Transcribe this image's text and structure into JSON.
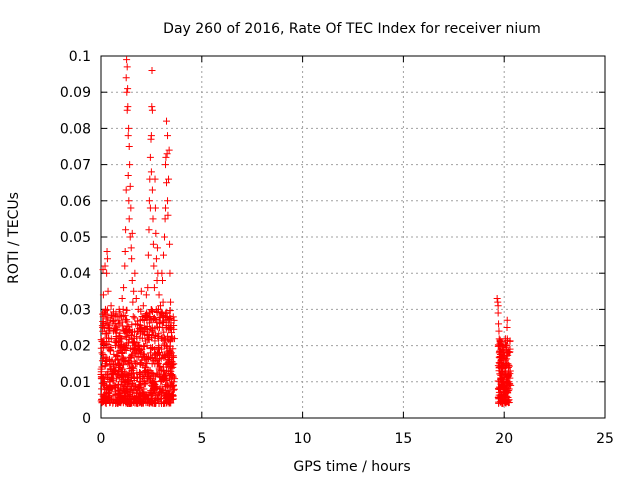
{
  "chart_data": {
    "type": "scatter",
    "title": "Day 260 of 2016, Rate Of TEC Index for receiver nium",
    "xlabel": "GPS time / hours",
    "ylabel": "ROTI / TECUs",
    "xlim": [
      0,
      25
    ],
    "ylim": [
      0,
      0.1
    ],
    "x_ticks": [
      0,
      5,
      10,
      15,
      20,
      25
    ],
    "y_ticks": [
      0,
      0.01,
      0.02,
      0.03,
      0.04,
      0.05,
      0.06,
      0.07,
      0.08,
      0.09,
      0.1
    ],
    "x_tick_labels": [
      "0",
      "5",
      "10",
      "15",
      "20",
      "25"
    ],
    "y_tick_labels": [
      "0",
      "0.01",
      "0.02",
      "0.03",
      "0.04",
      "0.05",
      "0.06",
      "0.07",
      "0.08",
      "0.09",
      "0.1"
    ],
    "grid": true,
    "marker": "+",
    "marker_color": "#ff0000",
    "series": [
      {
        "name": "ROTI",
        "points": [
          [
            0.0,
            0.012
          ],
          [
            0.05,
            0.018
          ],
          [
            0.08,
            0.025
          ],
          [
            0.1,
            0.041
          ],
          [
            0.12,
            0.034
          ],
          [
            0.15,
            0.021
          ],
          [
            0.18,
            0.008
          ],
          [
            0.2,
            0.042
          ],
          [
            0.22,
            0.03
          ],
          [
            0.25,
            0.015
          ],
          [
            0.28,
            0.04
          ],
          [
            0.3,
            0.046
          ],
          [
            0.32,
            0.044
          ],
          [
            0.35,
            0.035
          ],
          [
            0.38,
            0.022
          ],
          [
            0.4,
            0.011
          ],
          [
            0.42,
            0.006
          ],
          [
            0.45,
            0.019
          ],
          [
            0.48,
            0.027
          ],
          [
            0.5,
            0.031
          ],
          [
            0.55,
            0.016
          ],
          [
            0.6,
            0.009
          ],
          [
            0.62,
            0.024
          ],
          [
            0.65,
            0.013
          ],
          [
            0.7,
            0.028
          ],
          [
            0.72,
            0.02
          ],
          [
            0.75,
            0.012
          ],
          [
            0.78,
            0.005
          ],
          [
            0.8,
            0.017
          ],
          [
            0.85,
            0.026
          ],
          [
            0.88,
            0.014
          ],
          [
            0.9,
            0.03
          ],
          [
            0.95,
            0.021
          ],
          [
            1.0,
            0.01
          ],
          [
            1.02,
            0.028
          ],
          [
            1.05,
            0.033
          ],
          [
            1.08,
            0.019
          ],
          [
            1.1,
            0.03
          ],
          [
            1.12,
            0.036
          ],
          [
            1.15,
            0.024
          ],
          [
            1.18,
            0.042
          ],
          [
            1.2,
            0.046
          ],
          [
            1.22,
            0.052
          ],
          [
            1.25,
            0.063
          ],
          [
            1.25,
            0.094
          ],
          [
            1.27,
            0.099
          ],
          [
            1.28,
            0.09
          ],
          [
            1.3,
            0.085
          ],
          [
            1.3,
            0.097
          ],
          [
            1.32,
            0.091
          ],
          [
            1.33,
            0.086
          ],
          [
            1.35,
            0.078
          ],
          [
            1.35,
            0.067
          ],
          [
            1.37,
            0.08
          ],
          [
            1.38,
            0.06
          ],
          [
            1.4,
            0.075
          ],
          [
            1.4,
            0.055
          ],
          [
            1.42,
            0.07
          ],
          [
            1.45,
            0.064
          ],
          [
            1.45,
            0.05
          ],
          [
            1.48,
            0.058
          ],
          [
            1.5,
            0.047
          ],
          [
            1.52,
            0.044
          ],
          [
            1.55,
            0.051
          ],
          [
            1.55,
            0.038
          ],
          [
            1.58,
            0.032
          ],
          [
            1.6,
            0.028
          ],
          [
            1.62,
            0.035
          ],
          [
            1.65,
            0.022
          ],
          [
            1.68,
            0.04
          ],
          [
            1.7,
            0.018
          ],
          [
            1.72,
            0.026
          ],
          [
            1.75,
            0.033
          ],
          [
            1.78,
            0.015
          ],
          [
            1.8,
            0.024
          ],
          [
            1.82,
            0.008
          ],
          [
            1.85,
            0.03
          ],
          [
            1.88,
            0.02
          ],
          [
            1.9,
            0.012
          ],
          [
            1.95,
            0.027
          ],
          [
            2.0,
            0.035
          ],
          [
            2.02,
            0.016
          ],
          [
            2.05,
            0.022
          ],
          [
            2.08,
            0.01
          ],
          [
            2.1,
            0.031
          ],
          [
            2.15,
            0.025
          ],
          [
            2.2,
            0.014
          ],
          [
            2.25,
            0.034
          ],
          [
            2.28,
            0.02
          ],
          [
            2.3,
            0.028
          ],
          [
            2.32,
            0.036
          ],
          [
            2.35,
            0.045
          ],
          [
            2.38,
            0.052
          ],
          [
            2.4,
            0.06
          ],
          [
            2.42,
            0.066
          ],
          [
            2.45,
            0.072
          ],
          [
            2.45,
            0.058
          ],
          [
            2.48,
            0.077
          ],
          [
            2.5,
            0.068
          ],
          [
            2.5,
            0.078
          ],
          [
            2.52,
            0.086
          ],
          [
            2.53,
            0.096
          ],
          [
            2.55,
            0.085
          ],
          [
            2.55,
            0.063
          ],
          [
            2.58,
            0.055
          ],
          [
            2.6,
            0.048
          ],
          [
            2.62,
            0.042
          ],
          [
            2.65,
            0.036
          ],
          [
            2.68,
            0.066
          ],
          [
            2.7,
            0.058
          ],
          [
            2.72,
            0.051
          ],
          [
            2.75,
            0.044
          ],
          [
            2.78,
            0.038
          ],
          [
            2.8,
            0.047
          ],
          [
            2.82,
            0.04
          ],
          [
            2.85,
            0.03
          ],
          [
            2.88,
            0.034
          ],
          [
            2.9,
            0.025
          ],
          [
            2.95,
            0.031
          ],
          [
            3.0,
            0.022
          ],
          [
            3.02,
            0.04
          ],
          [
            3.05,
            0.038
          ],
          [
            3.08,
            0.032
          ],
          [
            3.1,
            0.045
          ],
          [
            3.12,
            0.028
          ],
          [
            3.15,
            0.05
          ],
          [
            3.18,
            0.055
          ],
          [
            3.2,
            0.058
          ],
          [
            3.2,
            0.07
          ],
          [
            3.22,
            0.072
          ],
          [
            3.25,
            0.082
          ],
          [
            3.25,
            0.065
          ],
          [
            3.28,
            0.073
          ],
          [
            3.3,
            0.078
          ],
          [
            3.3,
            0.06
          ],
          [
            3.32,
            0.056
          ],
          [
            3.35,
            0.066
          ],
          [
            3.38,
            0.074
          ],
          [
            3.4,
            0.048
          ],
          [
            3.42,
            0.04
          ],
          [
            3.45,
            0.032
          ],
          [
            3.48,
            0.025
          ],
          [
            3.5,
            0.018
          ],
          [
            3.52,
            0.012
          ],
          [
            3.55,
            0.006
          ],
          [
            3.58,
            0.01
          ],
          [
            3.6,
            0.015
          ],
          [
            19.65,
            0.033
          ],
          [
            19.68,
            0.032
          ],
          [
            19.7,
            0.031
          ],
          [
            19.7,
            0.029
          ],
          [
            19.72,
            0.026
          ],
          [
            19.74,
            0.024
          ],
          [
            19.75,
            0.02
          ],
          [
            19.76,
            0.018
          ],
          [
            19.78,
            0.015
          ],
          [
            19.8,
            0.017
          ],
          [
            19.82,
            0.021
          ],
          [
            19.84,
            0.019
          ],
          [
            19.85,
            0.016
          ],
          [
            19.86,
            0.013
          ],
          [
            19.88,
            0.011
          ],
          [
            19.9,
            0.009
          ],
          [
            19.92,
            0.014
          ],
          [
            19.94,
            0.012
          ],
          [
            19.95,
            0.01
          ],
          [
            19.96,
            0.008
          ],
          [
            19.98,
            0.006
          ],
          [
            20.0,
            0.007
          ],
          [
            20.02,
            0.009
          ],
          [
            20.04,
            0.012
          ],
          [
            20.05,
            0.014
          ],
          [
            20.06,
            0.016
          ],
          [
            20.08,
            0.013
          ],
          [
            20.1,
            0.011
          ],
          [
            20.12,
            0.02
          ],
          [
            20.14,
            0.025
          ],
          [
            20.15,
            0.027
          ],
          [
            20.16,
            0.018
          ],
          [
            20.18,
            0.015
          ],
          [
            20.2,
            0.012
          ],
          [
            20.22,
            0.01
          ],
          [
            20.25,
            0.008
          ],
          [
            20.28,
            0.011
          ],
          [
            20.3,
            0.013
          ],
          [
            20.32,
            0.009
          ]
        ]
      }
    ]
  }
}
